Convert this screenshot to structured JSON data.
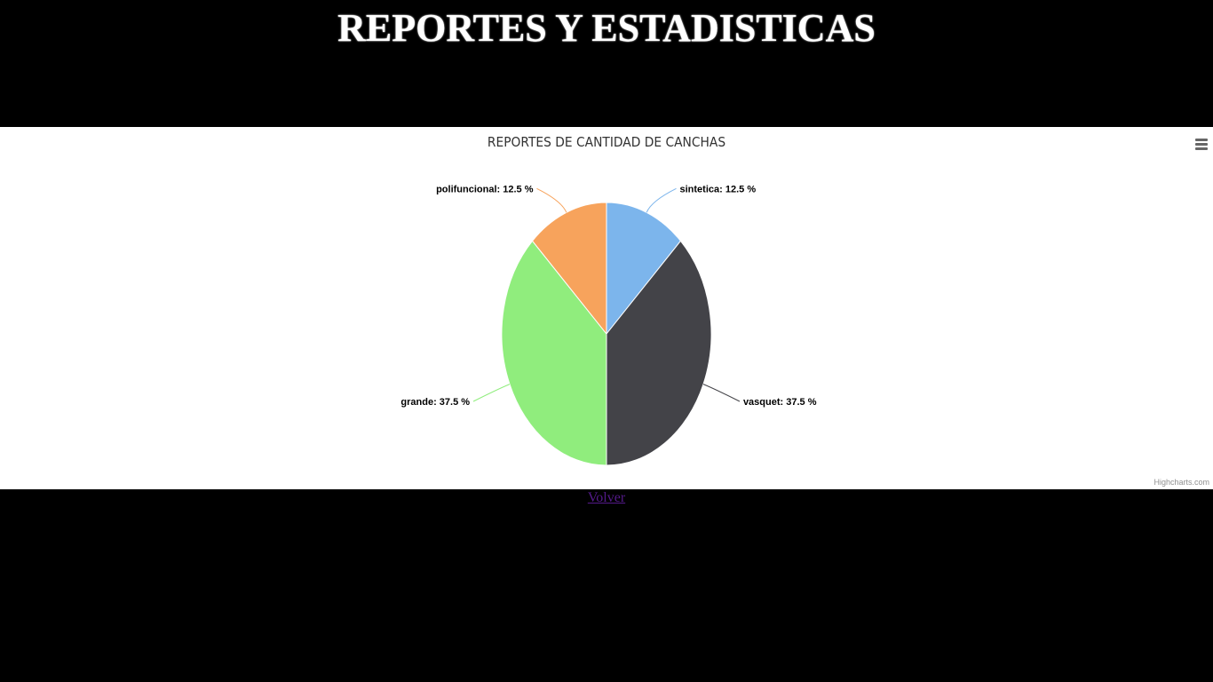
{
  "page": {
    "heading": "REPORTES Y ESTADISTICAS",
    "back_link": "Volver"
  },
  "chart_data": {
    "type": "pie",
    "title": "REPORTES DE CANTIDAD DE CANCHAS",
    "slices": [
      {
        "name": "sintetica",
        "value": 12.5,
        "label": "sintetica: 12.5 %",
        "color": "#7cb5ec"
      },
      {
        "name": "vasquet",
        "value": 37.5,
        "label": "vasquet: 37.5 %",
        "color": "#434348"
      },
      {
        "name": "grande",
        "value": 37.5,
        "label": "grande: 37.5 %",
        "color": "#90ed7d"
      },
      {
        "name": "polifuncional",
        "value": 12.5,
        "label": "polifuncional: 12.5 %",
        "color": "#f7a35c"
      }
    ],
    "credits": "Highcharts.com",
    "menu_icon": "hamburger-menu-icon"
  }
}
